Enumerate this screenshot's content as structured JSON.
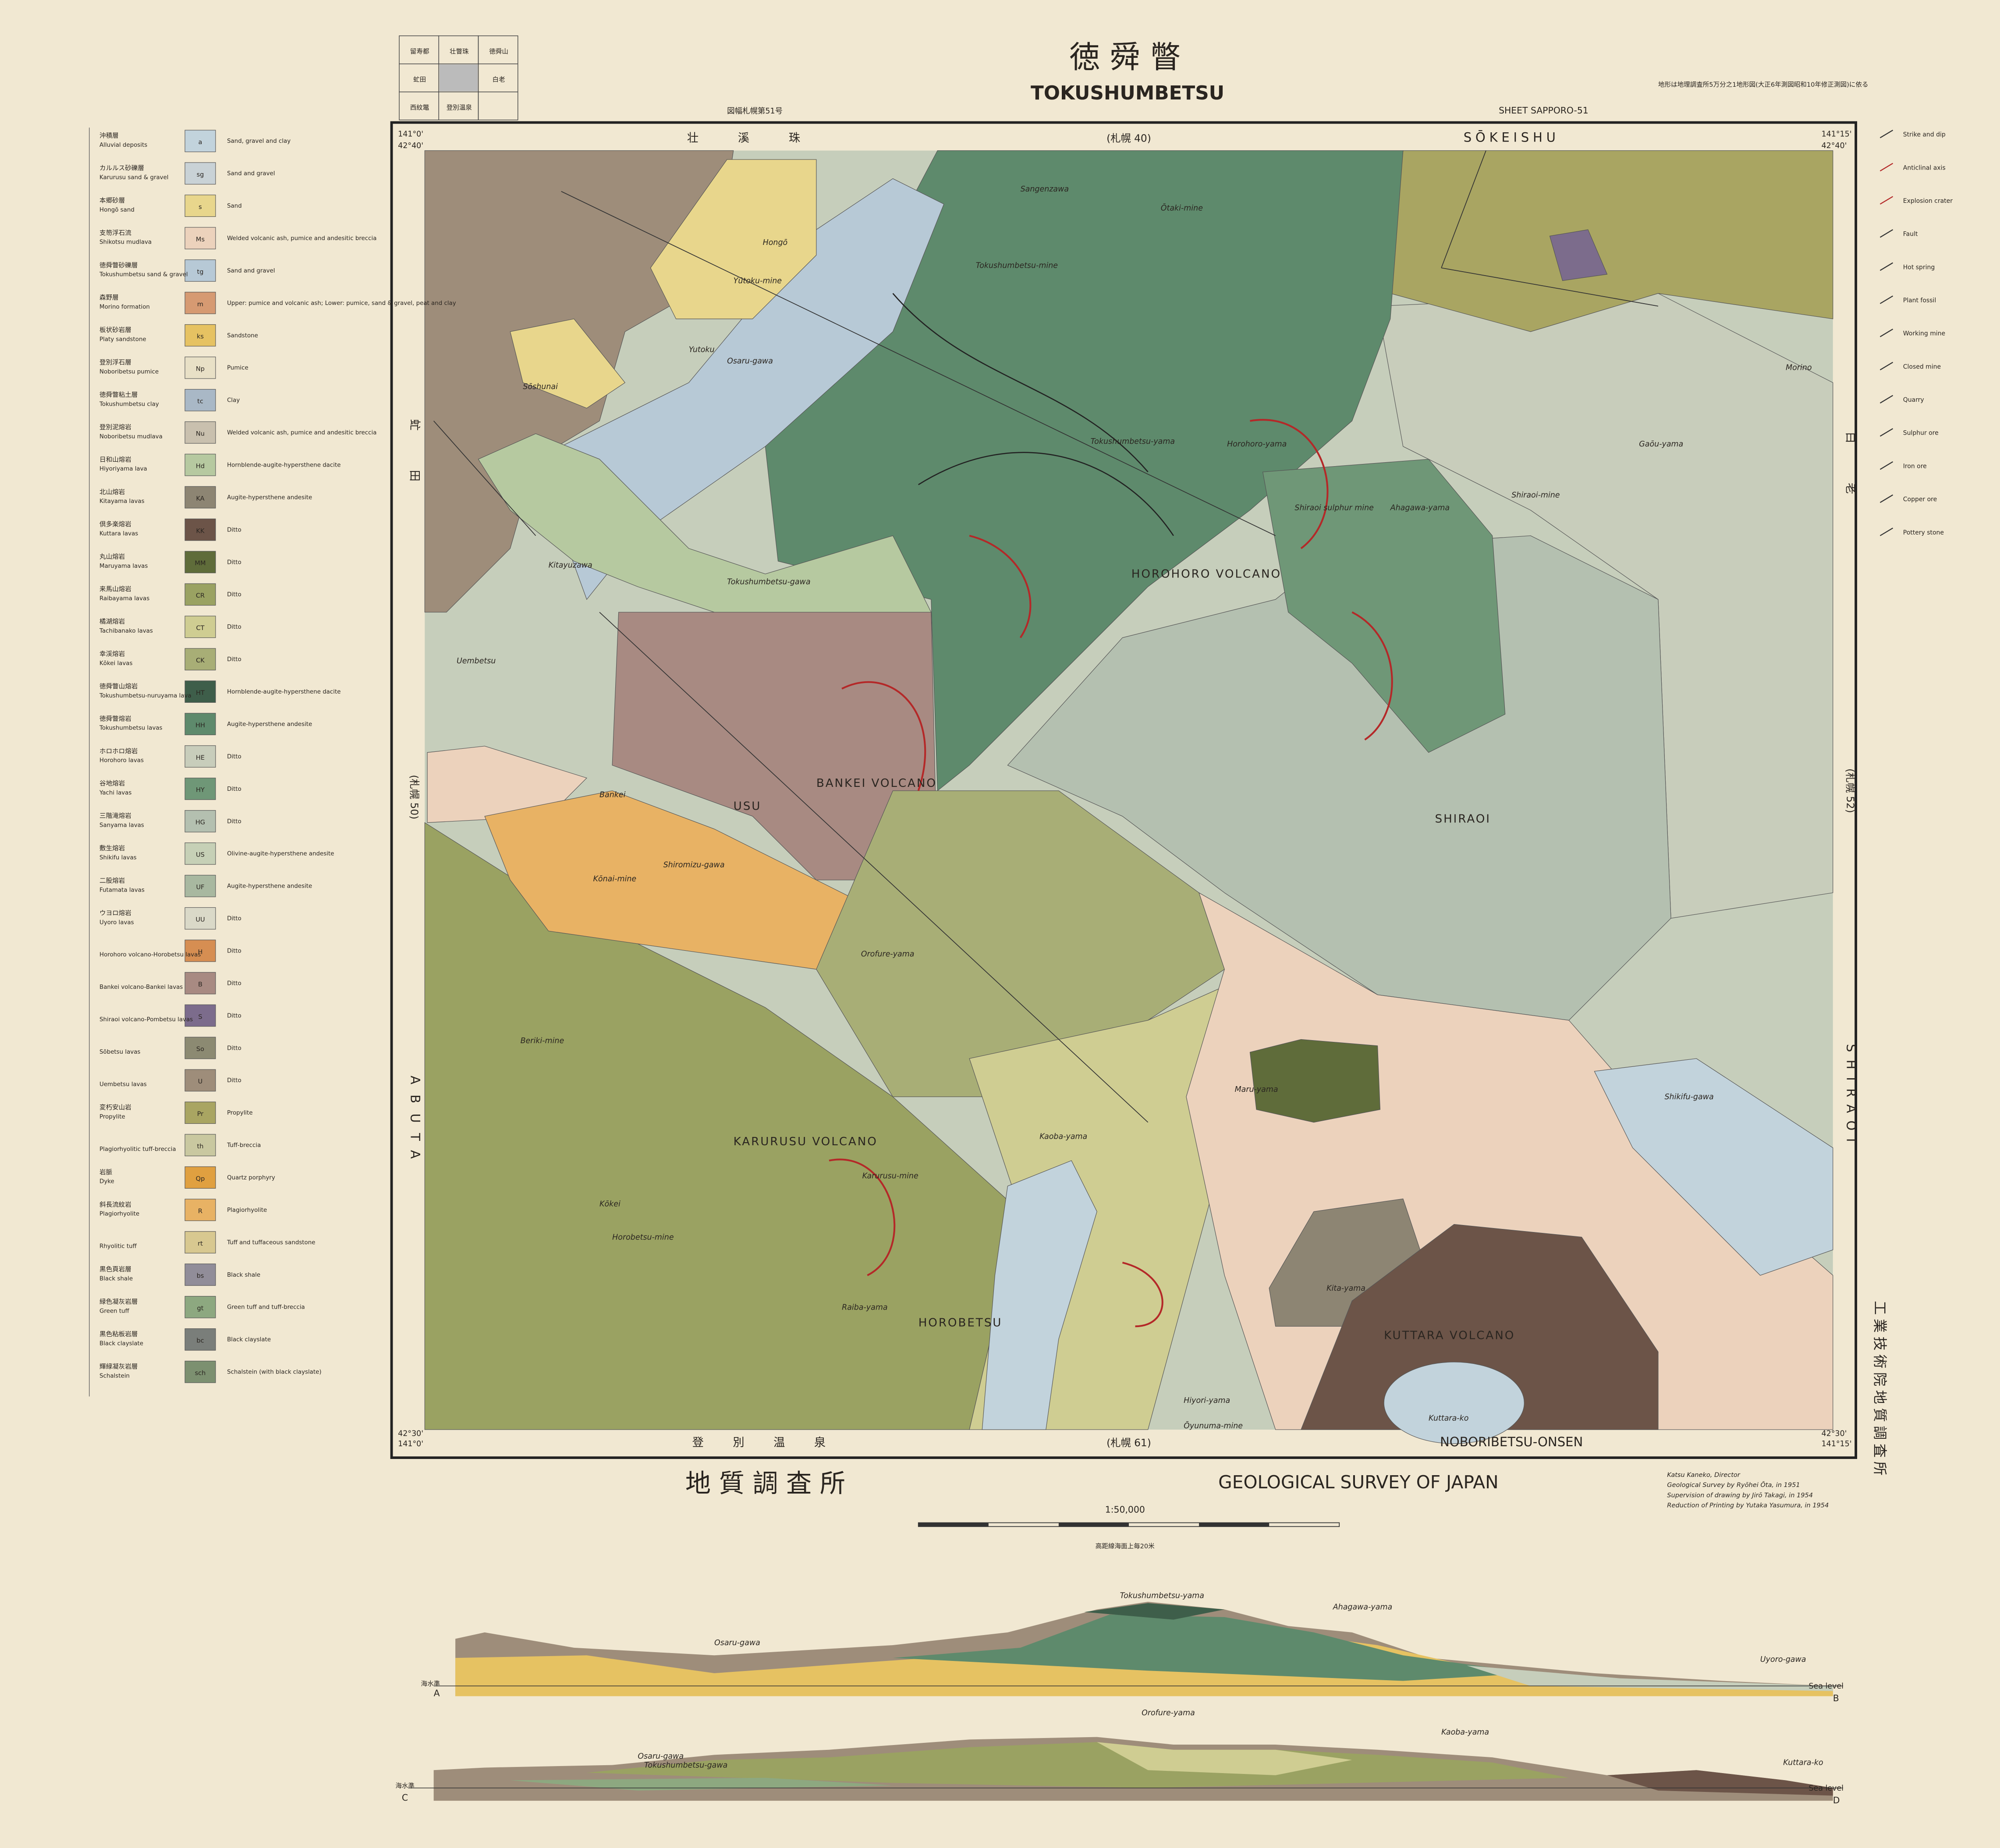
{
  "header": {
    "title_ja": "徳 舜 瞥",
    "title": "TOKUSHUMBETSU",
    "sheet": "SHEET SAPPORO-51",
    "index_label": "図幅札幌第51号",
    "note": "地形は地理調査所5万分之1地形図(大正6年測図昭和10年修正測図)に依る"
  },
  "index_map": [
    "留寿都",
    "壮瞥珠",
    "徳舜山",
    "虻田",
    "白老",
    "西紋鼈",
    "登別温泉"
  ],
  "margins": {
    "north_ja": "壮 溪 珠",
    "north_sheet": "(札幌 40)",
    "north": "SŌKEISHU",
    "south_ja": "登 別 温 泉",
    "south_sheet": "(札幌 61)",
    "south": "NOBORIBETSU-ONSEN",
    "west_ja": "虻 田",
    "west_sheet": "(札幌 50)",
    "west": "ABUTA",
    "east_ja": "白 老",
    "east_sheet": "(札幌 52)",
    "east": "SHIRAOI"
  },
  "corners": {
    "lon_w": "141°0'",
    "lon_e": "141°15'",
    "lat_n": "42°40'",
    "lat_s": "42°30'"
  },
  "legend": [
    {
      "code": "a",
      "name_ja": "沖積層",
      "name": "Alluvial deposits",
      "desc": "Sand, gravel and clay",
      "color": "#c2d3dc"
    },
    {
      "code": "sg",
      "name_ja": "カルルス砂礫層",
      "name": "Karurusu sand & gravel",
      "desc": "Sand and gravel",
      "color": "#c9d2d6"
    },
    {
      "code": "s",
      "name_ja": "本郷砂層",
      "name": "Hongō sand",
      "desc": "Sand",
      "color": "#e8d68c"
    },
    {
      "code": "Ms",
      "name_ja": "支笏浮石流",
      "name": "Shikotsu mudlava",
      "desc": "Welded volcanic ash, pumice and andesitic breccia",
      "color": "#ecd2bc"
    },
    {
      "code": "tg",
      "name_ja": "徳舜瞥砂礫層",
      "name": "Tokushumbetsu sand & gravel",
      "desc": "Sand and gravel",
      "color": "#b7c9d6"
    },
    {
      "code": "m",
      "name_ja": "森野層",
      "name": "Morino formation",
      "desc": "Upper: pumice and volcanic ash; Lower: pumice, sand & gravel, peat and clay",
      "color": "#d69a72"
    },
    {
      "code": "ks",
      "name_ja": "板状砂岩層",
      "name": "Platy sandstone",
      "desc": "Sandstone",
      "color": "#e6c262"
    },
    {
      "code": "Np",
      "name_ja": "登別浮石層",
      "name": "Noboribetsu pumice",
      "desc": "Pumice",
      "color": "#e8e0c6"
    },
    {
      "code": "tc",
      "name_ja": "徳舜瞥粘土層",
      "name": "Tokushumbetsu clay",
      "desc": "Clay",
      "color": "#a9b8c6"
    },
    {
      "code": "Nu",
      "name_ja": "登別泥熔岩",
      "name": "Noboribetsu mudlava",
      "desc": "Welded volcanic ash, pumice and andesitic breccia",
      "color": "#c9c0ae"
    },
    {
      "code": "Hd",
      "name_ja": "日和山熔岩",
      "name": "Hiyoriyama lava",
      "desc": "Hornblende-augite-hypersthene dacite",
      "color": "#b6c9a0"
    },
    {
      "code": "KA",
      "name_ja": "北山熔岩",
      "name": "Kitayama lavas",
      "desc": "Augite-hypersthene andesite",
      "color": "#8d8573"
    },
    {
      "code": "KK",
      "name_ja": "倶多楽熔岩",
      "name": "Kuttara lavas",
      "desc": "Ditto",
      "color": "#6c5448"
    },
    {
      "code": "MM",
      "name_ja": "丸山熔岩",
      "name": "Maruyama lavas",
      "desc": "Ditto",
      "color": "#5f6c3a"
    },
    {
      "code": "CR",
      "name_ja": "来馬山熔岩",
      "name": "Raibayama lavas",
      "desc": "Ditto",
      "color": "#9aa262"
    },
    {
      "code": "CT",
      "name_ja": "橘湖熔岩",
      "name": "Tachibanako lavas",
      "desc": "Ditto",
      "color": "#cfcd92"
    },
    {
      "code": "CK",
      "name_ja": "幸渓熔岩",
      "name": "Kōkei lavas",
      "desc": "Ditto",
      "color": "#a8ae76"
    },
    {
      "code": "HT",
      "name_ja": "徳舜瞥山熔岩",
      "name": "Tokushumbetsu-nuruyama lava",
      "desc": "Hornblende-augite-hypersthene dacite",
      "color": "#3e5e4a"
    },
    {
      "code": "HH",
      "name_ja": "徳舜瞥熔岩",
      "name": "Tokushumbetsu lavas",
      "desc": "Augite-hypersthene andesite",
      "color": "#5e8a6c"
    },
    {
      "code": "HE",
      "name_ja": "ホロホロ熔岩",
      "name": "Horohoro lavas",
      "desc": "Ditto",
      "color": "#c8cdbb"
    },
    {
      "code": "HY",
      "name_ja": "谷地熔岩",
      "name": "Yachi lavas",
      "desc": "Ditto",
      "color": "#6f9777"
    },
    {
      "code": "HG",
      "name_ja": "三階滝熔岩",
      "name": "Sanyama lavas",
      "desc": "Ditto",
      "color": "#b4c0b0"
    },
    {
      "code": "US",
      "name_ja": "敷生熔岩",
      "name": "Shikifu lavas",
      "desc": "Olivine-augite-hypersthene andesite",
      "color": "#c6d0b6"
    },
    {
      "code": "UF",
      "name_ja": "二股熔岩",
      "name": "Futamata lavas",
      "desc": "Augite-hypersthene andesite",
      "color": "#a8b8a0"
    },
    {
      "code": "UU",
      "name_ja": "ウヨロ熔岩",
      "name": "Uyoro lavas",
      "desc": "Ditto",
      "color": "#dad9c8"
    },
    {
      "code": "H",
      "name": "Horohoro volcano-Horobetsu lavas",
      "desc": "Ditto",
      "color": "#d68e52"
    },
    {
      "code": "B",
      "name": "Bankei volcano-Bankei lavas",
      "desc": "Ditto",
      "color": "#a88a82"
    },
    {
      "code": "S",
      "name": "Shiraoi volcano-Pombetsu lavas",
      "desc": "Ditto",
      "color": "#7c6c8c"
    },
    {
      "code": "So",
      "name": "Sōbetsu lavas",
      "desc": "Ditto",
      "color": "#8c8a72"
    },
    {
      "code": "U",
      "name": "Uembetsu lavas",
      "desc": "Ditto",
      "color": "#9e8d7a"
    },
    {
      "code": "Pr",
      "name_ja": "変朽安山岩",
      "name": "Propylite",
      "desc": "Propylite",
      "color": "#a9a562"
    },
    {
      "code": "th",
      "name": "Plagiorhyolitic tuff-breccia",
      "desc": "Tuff-breccia",
      "color": "#c9c8a0"
    },
    {
      "code": "Qp",
      "name_ja": "岩脈",
      "name": "Dyke",
      "desc": "Quartz porphyry",
      "color": "#e0a040"
    },
    {
      "code": "R",
      "name_ja": "斜長流紋岩",
      "name": "Plagiorhyolite",
      "desc": "Plagiorhyolite",
      "color": "#e8b264"
    },
    {
      "code": "rt",
      "name": "Rhyolitic tuff",
      "desc": "Tuff and tuffaceous sandstone",
      "color": "#d8c890"
    },
    {
      "code": "bs",
      "name_ja": "黒色頁岩層",
      "name": "Black shale",
      "desc": "Black shale",
      "color": "#918d99"
    },
    {
      "code": "gt",
      "name_ja": "緑色凝灰岩層",
      "name": "Green tuff",
      "desc": "Green tuff and tuff-breccia",
      "color": "#8da880"
    },
    {
      "code": "bc",
      "name_ja": "黒色粘板岩層",
      "name": "Black clayslate",
      "desc": "Black clayslate",
      "color": "#7a7e7a"
    },
    {
      "code": "sch",
      "name_ja": "輝緑凝灰岩層",
      "name": "Schalstein",
      "desc": "Schalstein (with black clayslate)",
      "color": "#7c9070"
    }
  ],
  "symbols": [
    "Strike and dip",
    "Anticlinal axis",
    "Explosion crater",
    "Fault",
    "Hot spring",
    "Plant fossil",
    "Working mine",
    "Closed mine",
    "Quarry",
    "Sulphur ore",
    "Iron ore",
    "Copper ore",
    "Pottery stone"
  ],
  "map_labels": [
    "Hongō",
    "Yūtoku-mine",
    "Sōshunai",
    "Yutoku",
    "Osaru-gawa",
    "Tokushumbetsu-mine",
    "Tokushumbetsu-yama",
    "Horohoro-yama",
    "Shiraoi sulphur mine",
    "Ahagawa-yama",
    "HOROHORO VOLCANO",
    "Gaōu-yama",
    "Shiraoi-mine",
    "Morino",
    "Kitayuzawa",
    "Tokushumbetsu-gawa",
    "Uembetsu",
    "Bankei",
    "BANKEI VOLCANO",
    "USU",
    "SHIRAOI",
    "Kōnai-mine",
    "Shiromizu-gawa",
    "Orofure-yama",
    "Beriki-mine",
    "Maru-yama",
    "Kaoba-yama",
    "KARURUSU VOLCANO",
    "Karurusu-mine",
    "Kōkei",
    "Horobetsu-mine",
    "Raiba-yama",
    "HOROBETSU",
    "Kita-yama",
    "KUTTARA VOLCANO",
    "Kuttara-ko",
    "Hiyori-yama",
    "Ōyunuma-mine",
    "Shikifu-gawa",
    "Ōtaki-mine",
    "Sangenzawa"
  ],
  "footer": {
    "org_ja": "地 質 調 査 所",
    "org": "GEOLOGICAL SURVEY OF JAPAN",
    "scale": "1:50,000",
    "contour": "高距線海面上毎20米",
    "credits": [
      "Katsu Kaneko, Director",
      "Geological Survey by Ryōhei Ōta, in 1951",
      "Supervision of drawing by Jirō Takagi, in 1954",
      "Reduction of Printing by Yutaka Yasumura, in 1954"
    ],
    "publisher": "工業技術院地質調査所"
  },
  "sections": {
    "a": "A",
    "b": "B",
    "c": "C",
    "d": "D",
    "sea_level": "Sea level",
    "sea_ja": "海水準",
    "labels_ab": [
      "Tokushumbetsu-yama",
      "Ahagawa-yama",
      "Osaru-gawa",
      "Uyoro-gawa"
    ],
    "labels_cd": [
      "Orofure-yama",
      "Kaoba-yama",
      "Osaru-gawa",
      "Tokushumbetsu-gawa",
      "Kuttara-ko"
    ]
  }
}
